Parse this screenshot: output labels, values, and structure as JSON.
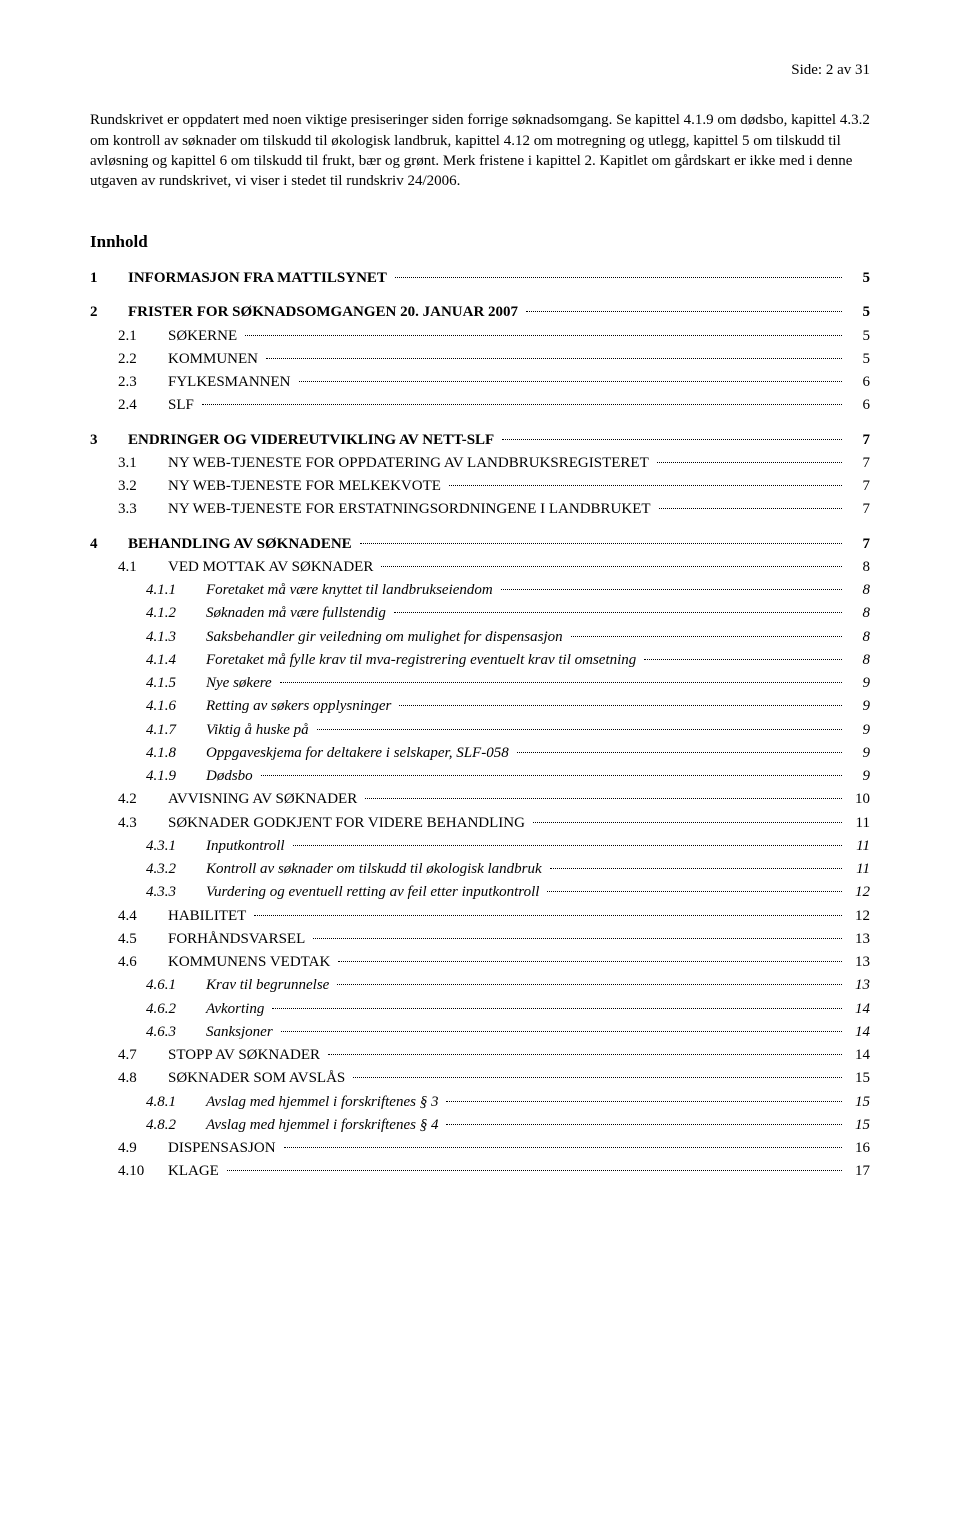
{
  "header": {
    "label": "Side:",
    "current": "2",
    "sep": "av",
    "total": "31"
  },
  "intro": {
    "para1": "Rundskrivet er oppdatert med noen viktige presiseringer siden forrige søknadsomgang. Se kapittel 4.1.9 om dødsbo, kapittel 4.3.2 om kontroll av søknader om tilskudd til økologisk landbruk, kapittel 4.12 om motregning og utlegg, kapittel 5 om tilskudd til avløsning og kapittel 6 om tilskudd til frukt, bær og grønt. Merk fristene i kapittel 2. Kapitlet om gårdskart er ikke med i denne utgaven av rundskrivet, vi viser i stedet til rundskriv 24/2006."
  },
  "tocTitle": "Innhold",
  "toc": [
    {
      "level": 1,
      "num": "1",
      "label": "INFORMASJON FRA MATTILSYNET",
      "page": "5"
    },
    {
      "level": 1,
      "num": "2",
      "label": "FRISTER FOR SØKNADSOMGANGEN 20. JANUAR 2007",
      "page": "5"
    },
    {
      "level": 2,
      "num": "2.1",
      "label": "SØKERNE",
      "smallcaps": true,
      "page": "5"
    },
    {
      "level": 2,
      "num": "2.2",
      "label": "KOMMUNEN",
      "smallcaps": true,
      "page": "5"
    },
    {
      "level": 2,
      "num": "2.3",
      "label": "FYLKESMANNEN",
      "smallcaps": true,
      "page": "6"
    },
    {
      "level": 2,
      "num": "2.4",
      "label": "SLF",
      "page": "6"
    },
    {
      "level": 1,
      "num": "3",
      "label": "ENDRINGER OG VIDEREUTVIKLING AV NETT-SLF",
      "page": "7"
    },
    {
      "level": 2,
      "num": "3.1",
      "label": "NY WEB-TJENESTE FOR OPPDATERING AV LANDBRUKSREGISTERET",
      "smallcaps": true,
      "page": "7"
    },
    {
      "level": 2,
      "num": "3.2",
      "label": "NY WEB-TJENESTE FOR MELKEKVOTE",
      "smallcaps": true,
      "page": "7"
    },
    {
      "level": 2,
      "num": "3.3",
      "label": "NY WEB-TJENESTE FOR ERSTATNINGSORDNINGENE I LANDBRUKET",
      "smallcaps": true,
      "page": "7"
    },
    {
      "level": 1,
      "num": "4",
      "label": "BEHANDLING AV SØKNADENE",
      "page": "7"
    },
    {
      "level": 2,
      "num": "4.1",
      "label": "VED MOTTAK AV SØKNADER",
      "smallcaps": true,
      "page": "8"
    },
    {
      "level": 3,
      "num": "4.1.1",
      "label": "Foretaket må være knyttet til landbrukseiendom",
      "page": "8"
    },
    {
      "level": 3,
      "num": "4.1.2",
      "label": "Søknaden må være fullstendig",
      "page": "8"
    },
    {
      "level": 3,
      "num": "4.1.3",
      "label": "Saksbehandler gir veiledning om mulighet for dispensasjon",
      "page": "8"
    },
    {
      "level": 3,
      "num": "4.1.4",
      "label": "Foretaket må fylle krav til mva-registrering eventuelt krav til omsetning",
      "page": "8"
    },
    {
      "level": 3,
      "num": "4.1.5",
      "label": "Nye søkere",
      "page": "9"
    },
    {
      "level": 3,
      "num": "4.1.6",
      "label": "Retting av søkers opplysninger",
      "page": "9"
    },
    {
      "level": 3,
      "num": "4.1.7",
      "label": "Viktig å huske på",
      "page": "9"
    },
    {
      "level": 3,
      "num": "4.1.8",
      "label": "Oppgaveskjema for deltakere i selskaper, SLF-058",
      "page": "9"
    },
    {
      "level": 3,
      "num": "4.1.9",
      "label": "Dødsbo",
      "page": "9"
    },
    {
      "level": 2,
      "num": "4.2",
      "label": "AVVISNING AV SØKNADER",
      "smallcaps": true,
      "page": "10"
    },
    {
      "level": 2,
      "num": "4.3",
      "label": "SØKNADER GODKJENT FOR VIDERE BEHANDLING",
      "smallcaps": true,
      "page": "11"
    },
    {
      "level": 3,
      "num": "4.3.1",
      "label": "Inputkontroll",
      "page": "11"
    },
    {
      "level": 3,
      "num": "4.3.2",
      "label": "Kontroll av søknader om tilskudd til økologisk landbruk",
      "page": "11"
    },
    {
      "level": 3,
      "num": "4.3.3",
      "label": "Vurdering og eventuell retting av feil etter inputkontroll",
      "page": "12"
    },
    {
      "level": 2,
      "num": "4.4",
      "label": "HABILITET",
      "smallcaps": true,
      "page": "12"
    },
    {
      "level": 2,
      "num": "4.5",
      "label": "FORHÅNDSVARSEL",
      "smallcaps": true,
      "page": "13"
    },
    {
      "level": 2,
      "num": "4.6",
      "label": "KOMMUNENS VEDTAK",
      "smallcaps": true,
      "page": "13"
    },
    {
      "level": 3,
      "num": "4.6.1",
      "label": "Krav til begrunnelse",
      "page": "13"
    },
    {
      "level": 3,
      "num": "4.6.2",
      "label": "Avkorting",
      "page": "14"
    },
    {
      "level": 3,
      "num": "4.6.3",
      "label": "Sanksjoner",
      "page": "14"
    },
    {
      "level": 2,
      "num": "4.7",
      "label": "STOPP AV SØKNADER",
      "smallcaps": true,
      "page": "14"
    },
    {
      "level": 2,
      "num": "4.8",
      "label": "SØKNADER SOM AVSLÅS",
      "smallcaps": true,
      "page": "15"
    },
    {
      "level": 3,
      "num": "4.8.1",
      "label": "Avslag med hjemmel i forskriftenes § 3",
      "page": "15"
    },
    {
      "level": 3,
      "num": "4.8.2",
      "label": "Avslag med hjemmel i forskriftenes § 4",
      "page": "15"
    },
    {
      "level": 2,
      "num": "4.9",
      "label": "DISPENSASJON",
      "smallcaps": true,
      "page": "16"
    },
    {
      "level": 2,
      "num": "4.10",
      "label": "KLAGE",
      "smallcaps": true,
      "page": "17"
    }
  ]
}
